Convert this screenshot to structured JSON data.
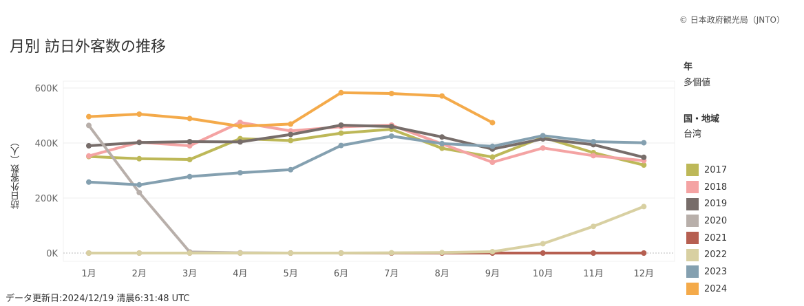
{
  "copyright": "© 日本政府観光局（JNTO）",
  "filters": {
    "year_header": "年",
    "year_value": "多個値",
    "region_header": "国・地域",
    "region_value": "台湾"
  },
  "footer": "データ更新日:2024/12/19 清晨6:31:48 UTC",
  "chart_data": {
    "type": "line",
    "title": "月別 訪日外客数の推移",
    "ylabel": "訪日外客数（人）",
    "xlabel": "",
    "categories": [
      "1月",
      "2月",
      "3月",
      "4月",
      "5月",
      "6月",
      "7月",
      "8月",
      "9月",
      "10月",
      "11月",
      "12月"
    ],
    "yticks": [
      0,
      200000,
      400000,
      600000
    ],
    "ytick_labels": [
      "0K",
      "200K",
      "400K",
      "600K"
    ],
    "ylim": [
      -20000,
      610000
    ],
    "legend_position": "right",
    "series": [
      {
        "name": "2017",
        "color": "#BDB858",
        "values": [
          351000,
          343000,
          340000,
          416000,
          409000,
          436000,
          450000,
          381000,
          349000,
          421000,
          365000,
          320000
        ]
      },
      {
        "name": "2018",
        "color": "#F4A3A3",
        "values": [
          353000,
          403000,
          390000,
          475000,
          444000,
          459000,
          465000,
          397000,
          330000,
          382000,
          354000,
          336000
        ]
      },
      {
        "name": "2019",
        "color": "#776D6A",
        "values": [
          390000,
          402000,
          405000,
          404000,
          431000,
          465000,
          460000,
          422000,
          378000,
          415000,
          394000,
          348000
        ]
      },
      {
        "name": "2020",
        "color": "#B8AFAA",
        "values": [
          464000,
          220000,
          4000,
          1000,
          0,
          0,
          0,
          0,
          0,
          0,
          0,
          0
        ]
      },
      {
        "name": "2021",
        "color": "#B65F51",
        "values": [
          0,
          0,
          0,
          0,
          0,
          0,
          0,
          0,
          0,
          0,
          0,
          0
        ]
      },
      {
        "name": "2022",
        "color": "#D8D0A2",
        "values": [
          0,
          0,
          0,
          0,
          0,
          0,
          1000,
          2000,
          5000,
          34000,
          97000,
          169000
        ]
      },
      {
        "name": "2023",
        "color": "#84A0B0",
        "values": [
          258000,
          248000,
          278000,
          292000,
          303000,
          391000,
          425000,
          398000,
          388000,
          427000,
          405000,
          401000
        ]
      },
      {
        "name": "2024",
        "color": "#F4AA4A",
        "values": [
          496000,
          505000,
          489000,
          461000,
          469000,
          583000,
          580000,
          571000,
          474000,
          null,
          null,
          null
        ]
      }
    ]
  }
}
